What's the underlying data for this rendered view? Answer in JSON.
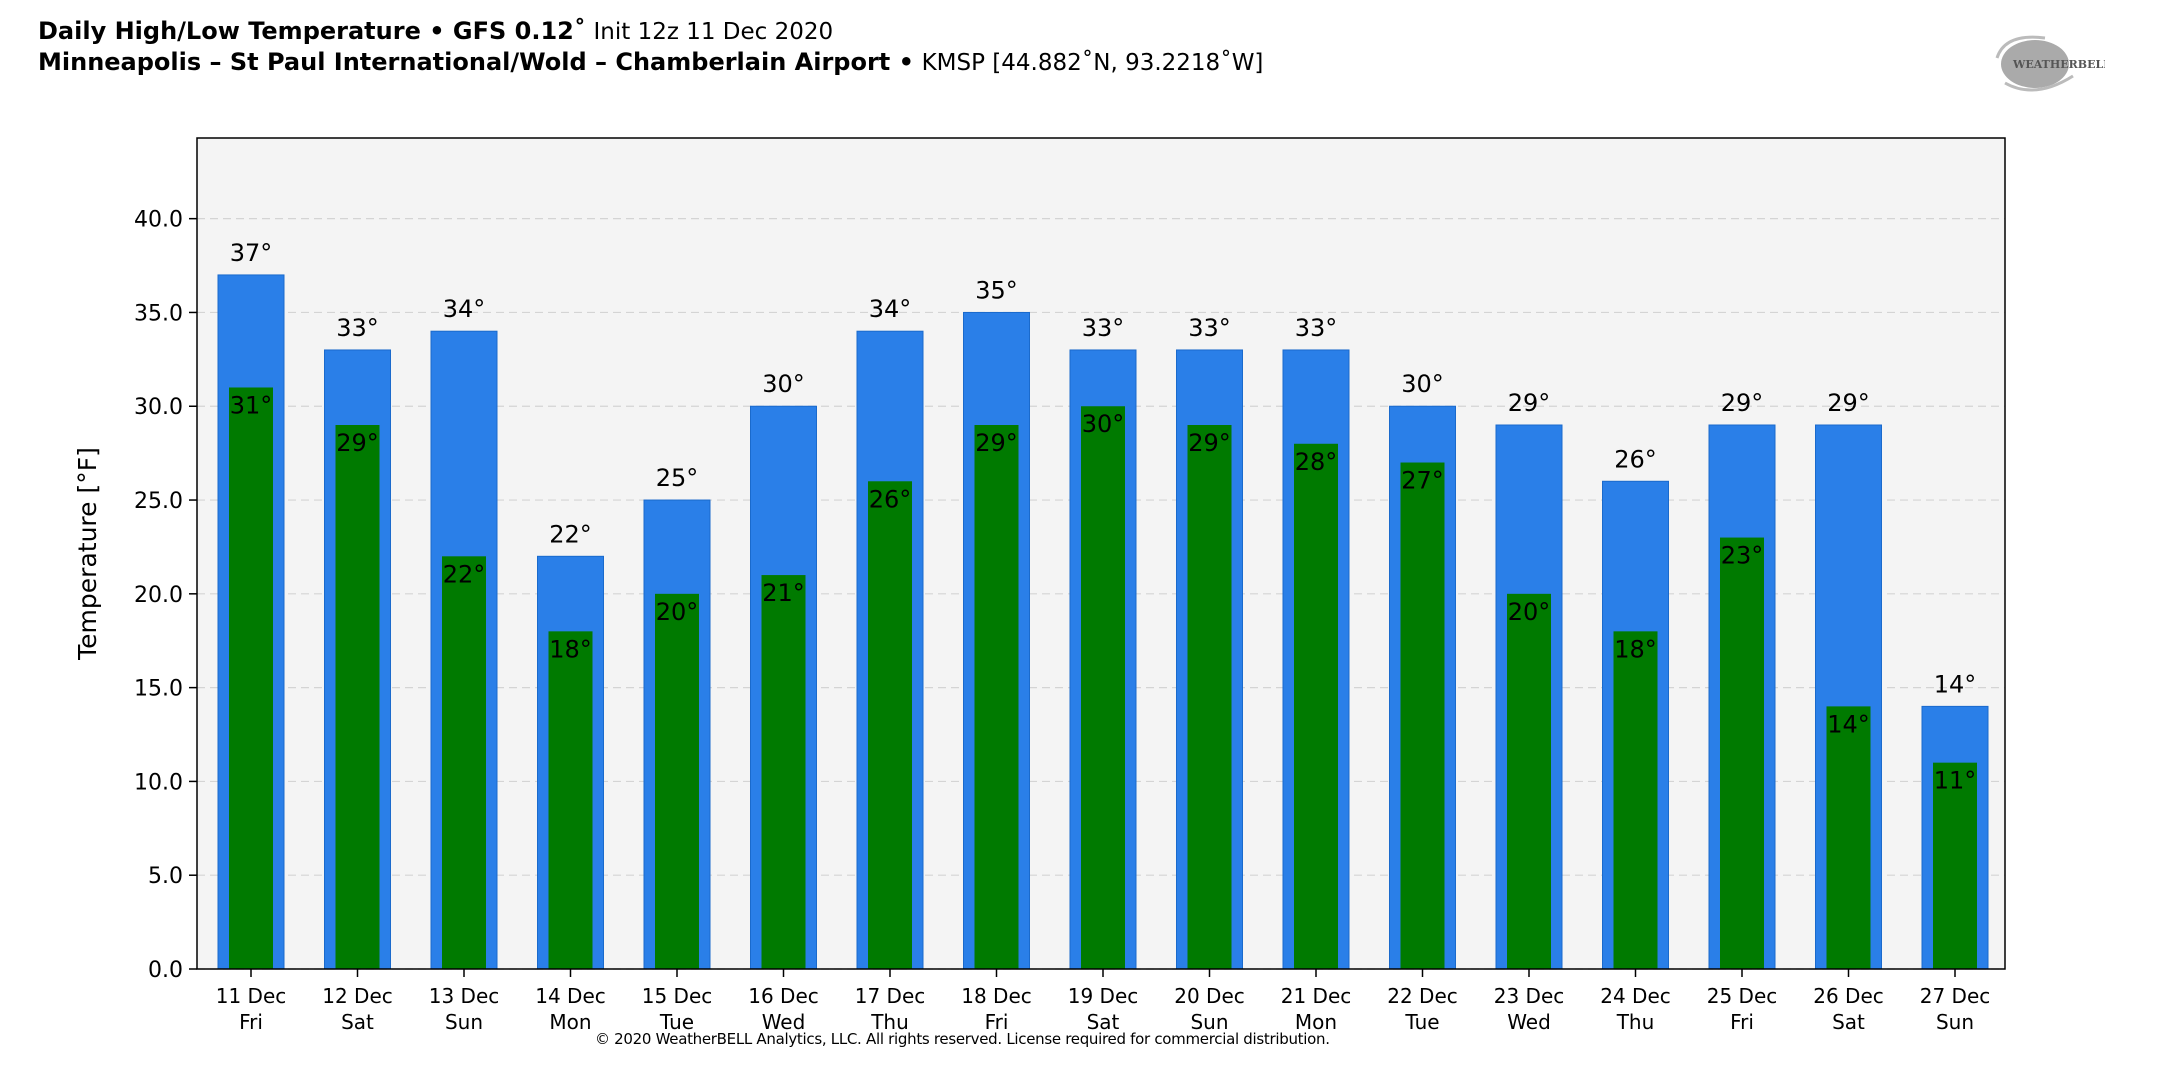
{
  "header": {
    "title_bold": "Daily High/Low Temperature • GFS 0.12˚",
    "title_rest": "Init 12z 11 Dec 2020",
    "location_bold": "Minneapolis – St Paul International/Wold – Chamberlain Airport •",
    "location_rest": "KMSP [44.882˚N, 93.2218˚W]"
  },
  "logo": {
    "text": "WeatherBELL Analytics LLC"
  },
  "footer": {
    "copyright": "© 2020 WeatherBELL Analytics, LLC. All rights reserved. License required for commercial distribution."
  },
  "chart_data": {
    "type": "bar",
    "ylabel": "Temperature [°F]",
    "ylim": [
      0,
      44.3
    ],
    "yticks": [
      "0.0",
      "5.0",
      "10.0",
      "15.0",
      "20.0",
      "25.0",
      "30.0",
      "35.0",
      "40.0"
    ],
    "grid": true,
    "categories": [
      "11 Dec|Fri",
      "12 Dec|Sat",
      "13 Dec|Sun",
      "14 Dec|Mon",
      "15 Dec|Tue",
      "16 Dec|Wed",
      "17 Dec|Thu",
      "18 Dec|Fri",
      "19 Dec|Sat",
      "20 Dec|Sun",
      "21 Dec|Mon",
      "22 Dec|Tue",
      "23 Dec|Wed",
      "24 Dec|Thu",
      "25 Dec|Fri",
      "26 Dec|Sat",
      "27 Dec|Sun"
    ],
    "series": [
      {
        "key": "high",
        "color": "#2a7fe8",
        "values": [
          37,
          33,
          34,
          22,
          25,
          30,
          34,
          35,
          33,
          33,
          33,
          30,
          29,
          26,
          29,
          29,
          14
        ]
      },
      {
        "key": "low",
        "color": "#007a00",
        "values": [
          31,
          29,
          22,
          18,
          20,
          21,
          26,
          29,
          30,
          29,
          28,
          27,
          20,
          18,
          23,
          14,
          11
        ]
      }
    ],
    "label_suffix": "°",
    "plot_background": "#f4f4f4"
  }
}
